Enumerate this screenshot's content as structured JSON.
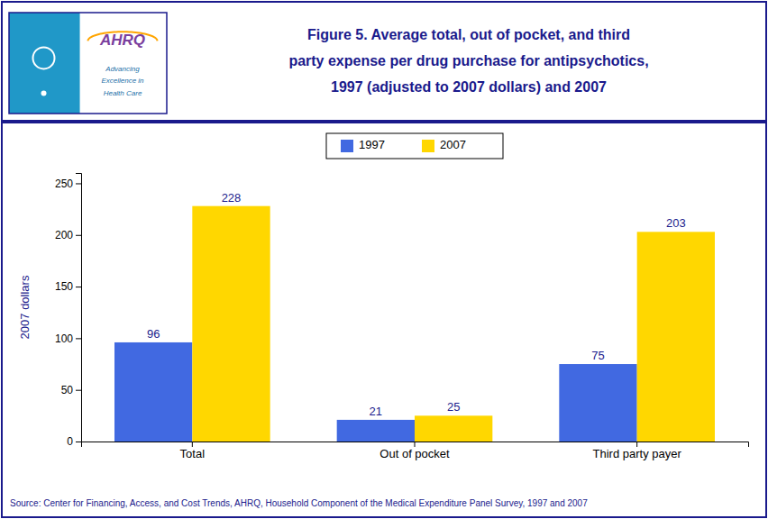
{
  "chart_data": {
    "type": "bar",
    "title": [
      "Figure 5. Average total, out of pocket, and third",
      "party expense per drug purchase for antipsychotics,",
      "1997 (adjusted to 2007 dollars) and 2007"
    ],
    "categories": [
      "Total",
      "Out of pocket",
      "Third party payer"
    ],
    "series": [
      {
        "name": "1997",
        "color": "#4169E1",
        "values": [
          96,
          21,
          75
        ]
      },
      {
        "name": "2007",
        "color": "#FFD700",
        "values": [
          228,
          25,
          203
        ]
      }
    ],
    "y_label": "2007 dollars",
    "ylim": [
      0,
      260
    ],
    "yticks": [
      0,
      50,
      100,
      150,
      200,
      250
    ],
    "grid": false,
    "legend": "top",
    "data_labels": true,
    "annotations": [
      "AHRQ",
      "Advancing",
      "Excellence in",
      "Health Care",
      "Source: Center for Financing, Access, and Cost Trends, AHRQ, Household Component of the Medical Expenditure Panel Survey, 1997 and 2007"
    ]
  }
}
